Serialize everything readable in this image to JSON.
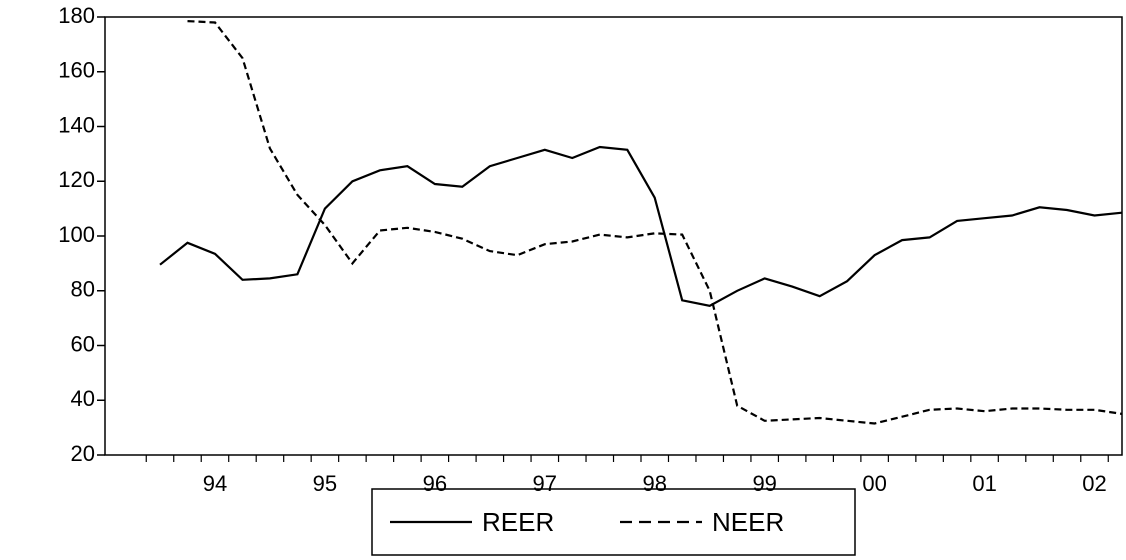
{
  "chart_data": {
    "type": "line",
    "categories": [
      null,
      null,
      "94",
      null,
      null,
      null,
      "95",
      null,
      null,
      null,
      "96",
      null,
      null,
      null,
      "97",
      null,
      null,
      null,
      "98",
      null,
      null,
      null,
      "99",
      null,
      null,
      null,
      "00",
      null,
      null,
      null,
      "01",
      null,
      null,
      null,
      "02",
      null
    ],
    "series": [
      {
        "name": "REER",
        "color": "#000000",
        "dash": "solid",
        "values": [
          89.5,
          97.5,
          93.5,
          84,
          84.5,
          86,
          110,
          120,
          124,
          125.5,
          119,
          118,
          125.5,
          128.5,
          131.5,
          128.5,
          132.5,
          131.5,
          114,
          76.5,
          74.5,
          80,
          84.5,
          81.5,
          78,
          83.5,
          93,
          98.5,
          99.5,
          105.5,
          106.5,
          107.5,
          110.5,
          109.5,
          107.5,
          108.5
        ]
      },
      {
        "name": "NEER",
        "color": "#000000",
        "dash": "dashed",
        "values": [
          null,
          178.5,
          178,
          165,
          132,
          115,
          104,
          90,
          102,
          103,
          101.5,
          99,
          94.5,
          93,
          97,
          98,
          100.5,
          99.5,
          101,
          100.5,
          80,
          38,
          32.5,
          33,
          33.5,
          32.5,
          31.5,
          34,
          36.5,
          37,
          36,
          37,
          37,
          36.5,
          36.5,
          35
        ]
      }
    ],
    "ylim": [
      20,
      180
    ],
    "yticks": [
      20,
      40,
      60,
      80,
      100,
      120,
      140,
      160,
      180
    ],
    "legend": "bottom"
  }
}
